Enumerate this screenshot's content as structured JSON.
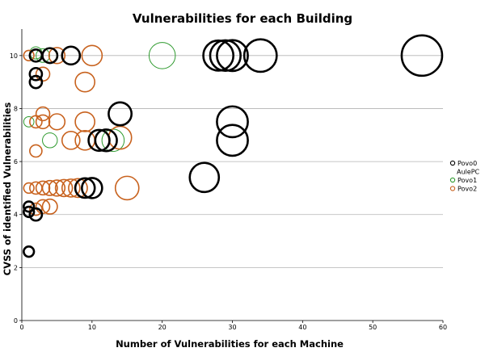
{
  "chart_data": {
    "type": "scatter",
    "title": "Vulnerabilities for each Building",
    "xlabel": "Number of Vulnerabilities for each Machine",
    "ylabel": "CVSS of identified Vulnerabilities",
    "xlim": [
      0,
      60
    ],
    "ylim": [
      0,
      11
    ],
    "xticks": [
      0,
      10,
      20,
      30,
      40,
      50,
      60
    ],
    "yticks": [
      0,
      2,
      4,
      6,
      8,
      10
    ],
    "grid": "horizontal",
    "legend_position": "right",
    "series": [
      {
        "name": "Povo0",
        "color": "#000000",
        "points": [
          {
            "x": 1,
            "y": 2.6
          },
          {
            "x": 1,
            "y": 4.1
          },
          {
            "x": 2,
            "y": 4.0
          },
          {
            "x": 1,
            "y": 4.3
          },
          {
            "x": 2,
            "y": 9.0
          },
          {
            "x": 2,
            "y": 9.3
          },
          {
            "x": 2,
            "y": 10.0
          },
          {
            "x": 4,
            "y": 10.0
          },
          {
            "x": 7,
            "y": 10.0
          },
          {
            "x": 9,
            "y": 5.0
          },
          {
            "x": 10,
            "y": 5.0
          },
          {
            "x": 11,
            "y": 6.8
          },
          {
            "x": 12,
            "y": 6.8
          },
          {
            "x": 14,
            "y": 7.8
          },
          {
            "x": 26,
            "y": 5.4
          },
          {
            "x": 28,
            "y": 10.0
          },
          {
            "x": 29,
            "y": 10.0
          },
          {
            "x": 30,
            "y": 10.0
          },
          {
            "x": 30,
            "y": 6.8
          },
          {
            "x": 30,
            "y": 7.5
          },
          {
            "x": 34,
            "y": 10.0
          },
          {
            "x": 57,
            "y": 10.0
          }
        ]
      },
      {
        "name": "AulePC",
        "color": "",
        "points": []
      },
      {
        "name": "Povo1",
        "color": "#2e9a2e",
        "points": [
          {
            "x": 1,
            "y": 10.0
          },
          {
            "x": 2,
            "y": 10.1
          },
          {
            "x": 3,
            "y": 10.0
          },
          {
            "x": 1,
            "y": 7.5
          },
          {
            "x": 4,
            "y": 6.8
          },
          {
            "x": 13,
            "y": 6.8
          },
          {
            "x": 20,
            "y": 10.0
          }
        ]
      },
      {
        "name": "Povo2",
        "color": "#c8621e",
        "points": [
          {
            "x": 1,
            "y": 2.6
          },
          {
            "x": 1,
            "y": 4.3
          },
          {
            "x": 2,
            "y": 4.2
          },
          {
            "x": 3,
            "y": 4.3
          },
          {
            "x": 4,
            "y": 4.3
          },
          {
            "x": 1,
            "y": 5.0
          },
          {
            "x": 2,
            "y": 5.0
          },
          {
            "x": 3,
            "y": 5.0
          },
          {
            "x": 4,
            "y": 5.0
          },
          {
            "x": 5,
            "y": 5.0
          },
          {
            "x": 6,
            "y": 5.0
          },
          {
            "x": 7,
            "y": 5.0
          },
          {
            "x": 8,
            "y": 5.0
          },
          {
            "x": 15,
            "y": 5.0
          },
          {
            "x": 2,
            "y": 6.4
          },
          {
            "x": 2,
            "y": 7.5
          },
          {
            "x": 3,
            "y": 7.5
          },
          {
            "x": 3,
            "y": 7.8
          },
          {
            "x": 5,
            "y": 7.5
          },
          {
            "x": 7,
            "y": 6.8
          },
          {
            "x": 9,
            "y": 7.5
          },
          {
            "x": 9,
            "y": 6.8
          },
          {
            "x": 14,
            "y": 6.9
          },
          {
            "x": 1,
            "y": 10.0
          },
          {
            "x": 3,
            "y": 9.3
          },
          {
            "x": 5,
            "y": 10.0
          },
          {
            "x": 9,
            "y": 9.0
          },
          {
            "x": 10,
            "y": 10.0
          }
        ]
      }
    ]
  }
}
